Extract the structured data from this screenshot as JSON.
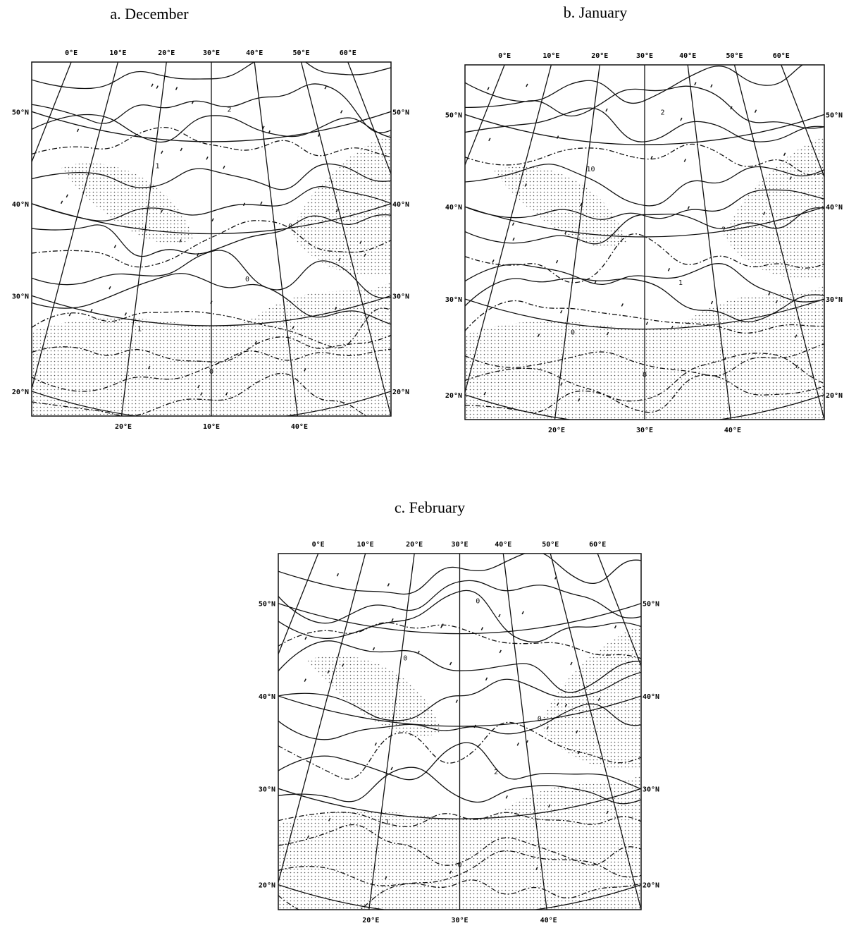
{
  "panels": [
    {
      "title": "a. December",
      "top_labels": [
        "0°E",
        "10°E",
        "20°E",
        "30°E",
        "40°E",
        "50°E",
        "60°E"
      ],
      "left_labels": [
        "50°N",
        "40°N",
        "30°N",
        "20°N"
      ],
      "right_labels": [
        "50°N",
        "40°N",
        "30°N",
        "20°N"
      ],
      "bottom_labels": [
        "20°E",
        "10°E",
        "40°E"
      ],
      "contour_labels": [
        "2",
        "1",
        "0",
        "0",
        "1",
        "0"
      ]
    },
    {
      "title": "b. January",
      "top_labels": [
        "0°E",
        "10°E",
        "20°E",
        "30°E",
        "40°E",
        "50°E",
        "60°E"
      ],
      "left_labels": [
        "50°N",
        "40°N",
        "30°N",
        "20°N"
      ],
      "right_labels": [
        "50°N",
        "40°N",
        "30°N",
        "20°N"
      ],
      "bottom_labels": [
        "20°E",
        "30°E",
        "40°E"
      ],
      "contour_labels": [
        "2",
        "10",
        "2",
        "1",
        "0",
        "0"
      ]
    },
    {
      "title": "c. February",
      "top_labels": [
        "0°E",
        "10°E",
        "20°E",
        "30°E",
        "40°E",
        "50°E",
        "60°E"
      ],
      "left_labels": [
        "50°N",
        "40°N",
        "30°N",
        "20°N"
      ],
      "right_labels": [
        "50°N",
        "40°N",
        "30°N",
        "20°N"
      ],
      "bottom_labels": [
        "20°E",
        "30°E",
        "40°E"
      ],
      "contour_labels": [
        "0",
        "0",
        "0",
        "2",
        "1",
        "0"
      ]
    }
  ]
}
